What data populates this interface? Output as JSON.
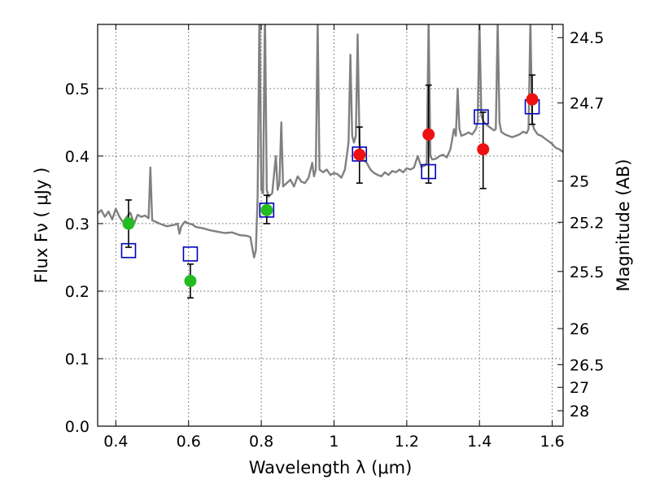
{
  "chart_data": {
    "type": "scatter",
    "title": "",
    "xlabel": "Wavelength  λ (μm)",
    "ylabel": "Flux  Fν  ( μJy )",
    "y2label": "Magnitude (AB)",
    "xlim": [
      0.35,
      1.63
    ],
    "ylim": [
      0.0,
      0.595
    ],
    "grid": true,
    "legend": "none",
    "x_ticks": [
      0.4,
      0.6,
      0.8,
      1.0,
      1.2,
      1.4,
      1.6
    ],
    "x_tick_labels": [
      "0.4",
      "0.6",
      "0.8",
      "1",
      "1.2",
      "1.4",
      "1.6"
    ],
    "y_ticks": [
      0.0,
      0.1,
      0.2,
      0.3,
      0.4,
      0.5
    ],
    "y_tick_labels": [
      "0.0",
      "0.1",
      "0.2",
      "0.3",
      "0.4",
      "0.5"
    ],
    "mag_ticks": [
      24.5,
      24.7,
      25,
      25.2,
      25.5,
      26,
      26.5,
      27,
      28
    ],
    "mag_tick_labels": [
      "24.5",
      "24.7",
      "25",
      "25.2",
      "25.5",
      "26",
      "26.5",
      "27",
      "28"
    ],
    "colors": {
      "spectrum": "#808080",
      "model": "#0000bb",
      "optical": "#22bb22",
      "nir": "#ee1111",
      "errorbar": "#000000",
      "grid": "#666666"
    },
    "spectrum": [
      [
        0.35,
        0.315
      ],
      [
        0.36,
        0.32
      ],
      [
        0.37,
        0.31
      ],
      [
        0.38,
        0.318
      ],
      [
        0.39,
        0.306
      ],
      [
        0.4,
        0.322
      ],
      [
        0.41,
        0.31
      ],
      [
        0.42,
        0.302
      ],
      [
        0.43,
        0.31
      ],
      [
        0.44,
        0.316
      ],
      [
        0.45,
        0.3
      ],
      [
        0.46,
        0.313
      ],
      [
        0.47,
        0.31
      ],
      [
        0.48,
        0.312
      ],
      [
        0.49,
        0.308
      ],
      [
        0.495,
        0.383
      ],
      [
        0.5,
        0.305
      ],
      [
        0.52,
        0.3
      ],
      [
        0.54,
        0.296
      ],
      [
        0.56,
        0.298
      ],
      [
        0.57,
        0.3
      ],
      [
        0.575,
        0.285
      ],
      [
        0.58,
        0.296
      ],
      [
        0.59,
        0.303
      ],
      [
        0.6,
        0.3
      ],
      [
        0.61,
        0.299
      ],
      [
        0.62,
        0.295
      ],
      [
        0.64,
        0.293
      ],
      [
        0.66,
        0.29
      ],
      [
        0.68,
        0.288
      ],
      [
        0.7,
        0.286
      ],
      [
        0.72,
        0.287
      ],
      [
        0.74,
        0.283
      ],
      [
        0.76,
        0.282
      ],
      [
        0.77,
        0.28
      ],
      [
        0.775,
        0.265
      ],
      [
        0.78,
        0.25
      ],
      [
        0.785,
        0.26
      ],
      [
        0.79,
        0.34
      ],
      [
        0.795,
        0.62
      ],
      [
        0.8,
        0.35
      ],
      [
        0.805,
        0.345
      ],
      [
        0.81,
        0.62
      ],
      [
        0.815,
        0.35
      ],
      [
        0.82,
        0.34
      ],
      [
        0.83,
        0.345
      ],
      [
        0.84,
        0.4
      ],
      [
        0.845,
        0.35
      ],
      [
        0.85,
        0.36
      ],
      [
        0.855,
        0.45
      ],
      [
        0.86,
        0.355
      ],
      [
        0.87,
        0.36
      ],
      [
        0.88,
        0.365
      ],
      [
        0.89,
        0.355
      ],
      [
        0.9,
        0.37
      ],
      [
        0.91,
        0.362
      ],
      [
        0.92,
        0.36
      ],
      [
        0.93,
        0.368
      ],
      [
        0.94,
        0.39
      ],
      [
        0.945,
        0.37
      ],
      [
        0.95,
        0.38
      ],
      [
        0.955,
        0.6
      ],
      [
        0.96,
        0.38
      ],
      [
        0.97,
        0.376
      ],
      [
        0.98,
        0.38
      ],
      [
        0.99,
        0.372
      ],
      [
        1.0,
        0.375
      ],
      [
        1.01,
        0.373
      ],
      [
        1.02,
        0.368
      ],
      [
        1.03,
        0.38
      ],
      [
        1.04,
        0.42
      ],
      [
        1.045,
        0.55
      ],
      [
        1.05,
        0.43
      ],
      [
        1.055,
        0.42
      ],
      [
        1.06,
        0.43
      ],
      [
        1.065,
        0.58
      ],
      [
        1.07,
        0.42
      ],
      [
        1.075,
        0.4
      ],
      [
        1.08,
        0.395
      ],
      [
        1.09,
        0.39
      ],
      [
        1.1,
        0.38
      ],
      [
        1.11,
        0.375
      ],
      [
        1.12,
        0.372
      ],
      [
        1.13,
        0.37
      ],
      [
        1.14,
        0.376
      ],
      [
        1.15,
        0.372
      ],
      [
        1.16,
        0.378
      ],
      [
        1.17,
        0.376
      ],
      [
        1.18,
        0.38
      ],
      [
        1.19,
        0.376
      ],
      [
        1.2,
        0.382
      ],
      [
        1.21,
        0.38
      ],
      [
        1.22,
        0.383
      ],
      [
        1.23,
        0.4
      ],
      [
        1.24,
        0.384
      ],
      [
        1.25,
        0.386
      ],
      [
        1.255,
        0.39
      ],
      [
        1.26,
        0.6
      ],
      [
        1.265,
        0.4
      ],
      [
        1.27,
        0.395
      ],
      [
        1.28,
        0.396
      ],
      [
        1.29,
        0.4
      ],
      [
        1.3,
        0.402
      ],
      [
        1.31,
        0.398
      ],
      [
        1.32,
        0.41
      ],
      [
        1.33,
        0.44
      ],
      [
        1.335,
        0.43
      ],
      [
        1.34,
        0.5
      ],
      [
        1.345,
        0.44
      ],
      [
        1.35,
        0.43
      ],
      [
        1.36,
        0.432
      ],
      [
        1.37,
        0.435
      ],
      [
        1.38,
        0.432
      ],
      [
        1.39,
        0.44
      ],
      [
        1.395,
        0.45
      ],
      [
        1.4,
        0.6
      ],
      [
        1.405,
        0.46
      ],
      [
        1.41,
        0.452
      ],
      [
        1.42,
        0.446
      ],
      [
        1.43,
        0.442
      ],
      [
        1.44,
        0.438
      ],
      [
        1.445,
        0.44
      ],
      [
        1.45,
        0.6
      ],
      [
        1.455,
        0.45
      ],
      [
        1.46,
        0.436
      ],
      [
        1.47,
        0.432
      ],
      [
        1.48,
        0.43
      ],
      [
        1.49,
        0.428
      ],
      [
        1.5,
        0.43
      ],
      [
        1.51,
        0.432
      ],
      [
        1.52,
        0.436
      ],
      [
        1.53,
        0.434
      ],
      [
        1.535,
        0.44
      ],
      [
        1.54,
        0.6
      ],
      [
        1.545,
        0.45
      ],
      [
        1.55,
        0.44
      ],
      [
        1.56,
        0.432
      ],
      [
        1.57,
        0.43
      ],
      [
        1.58,
        0.426
      ],
      [
        1.59,
        0.422
      ],
      [
        1.6,
        0.418
      ],
      [
        1.61,
        0.412
      ],
      [
        1.62,
        0.41
      ],
      [
        1.63,
        0.406
      ]
    ],
    "model": [
      [
        0.435,
        0.26
      ],
      [
        0.605,
        0.255
      ],
      [
        0.815,
        0.32
      ],
      [
        1.07,
        0.403
      ],
      [
        1.26,
        0.377
      ],
      [
        1.405,
        0.458
      ],
      [
        1.545,
        0.473
      ]
    ],
    "optical": [
      {
        "x": 0.435,
        "y": 0.3,
        "err": [
          0.265,
          0.335
        ]
      },
      {
        "x": 0.605,
        "y": 0.215,
        "err": [
          0.19,
          0.24
        ]
      },
      {
        "x": 0.815,
        "y": 0.32,
        "err": [
          0.3,
          0.342
        ]
      }
    ],
    "nir": [
      {
        "x": 1.07,
        "y": 0.402,
        "err": [
          0.36,
          0.443
        ]
      },
      {
        "x": 1.26,
        "y": 0.432,
        "err": [
          0.36,
          0.505
        ]
      },
      {
        "x": 1.41,
        "y": 0.41,
        "err": [
          0.352,
          0.465
        ]
      },
      {
        "x": 1.545,
        "y": 0.484,
        "err": [
          0.447,
          0.52
        ]
      }
    ]
  }
}
